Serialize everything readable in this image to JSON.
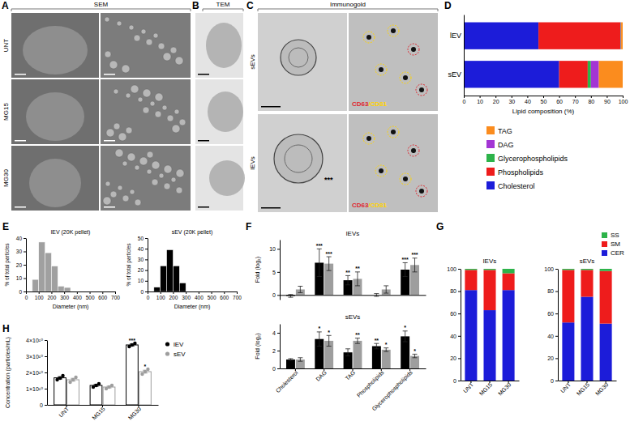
{
  "image_panels": {
    "A": {
      "label": "A",
      "header": "SEM",
      "rows": [
        "UNT",
        "MG15",
        "MG30"
      ]
    },
    "B": {
      "label": "B",
      "header": "TEM"
    },
    "C": {
      "label": "C",
      "header": "Immunogold",
      "rows": [
        "sEVs",
        "lEVs"
      ],
      "stain_labels": [
        {
          "text": "CD63",
          "color": "#e0262e"
        },
        {
          "text": "/CD81",
          "color": "#ffd400"
        }
      ],
      "annotation": "***"
    }
  },
  "chart_data": [
    {
      "type": "bar",
      "panel": "D",
      "orientation": "horizontal",
      "stacked": true,
      "legend": "bottom",
      "categories": [
        "lEV",
        "sEV"
      ],
      "series": [
        {
          "name": "Cholesterol",
          "color": "#1c1cd9",
          "values": [
            47,
            60
          ]
        },
        {
          "name": "Phospholipids",
          "color": "#ee1c1c",
          "values": [
            51.5,
            18
          ]
        },
        {
          "name": "Glycerophospholipids",
          "color": "#2db34a",
          "values": [
            0.3,
            2
          ]
        },
        {
          "name": "DAG",
          "color": "#a335d4",
          "values": [
            0.2,
            5
          ]
        },
        {
          "name": "TAG",
          "color": "#fb8c1e",
          "values": [
            1,
            15
          ]
        }
      ],
      "xlim": [
        0,
        100
      ],
      "xticks": [
        0,
        10,
        20,
        30,
        40,
        50,
        60,
        70,
        80,
        90,
        100
      ],
      "x_label": "Lipid composition (%)"
    },
    {
      "type": "histogram",
      "panel": "E",
      "title": "lEV (20K pellet)",
      "color": "#a0a0a0",
      "bins": [
        50,
        100,
        150,
        200,
        250,
        300,
        350
      ],
      "values": [
        9,
        37,
        29,
        19,
        4,
        3
      ],
      "xlim": [
        0,
        700
      ],
      "xticks": [
        0,
        100,
        200,
        300,
        400,
        500,
        600,
        700
      ],
      "ylim": [
        0,
        40
      ],
      "yticks": [
        0,
        10,
        20,
        30,
        40
      ],
      "x_label": "Diameter (nm)",
      "y_label": "% of total particles"
    },
    {
      "type": "histogram",
      "title": "sEV (20K pellet)",
      "color": "#000000",
      "bins": [
        50,
        100,
        150,
        200,
        250,
        300
      ],
      "values": [
        4,
        24,
        39,
        24,
        8
      ],
      "xlim": [
        0,
        700
      ],
      "xticks": [
        0,
        100,
        200,
        300,
        400,
        500,
        600,
        700
      ],
      "ylim": [
        0,
        50
      ],
      "yticks": [
        0,
        10,
        20,
        30,
        40,
        50
      ],
      "x_label": "Diameter (nm)",
      "y_label": "% of total particles"
    },
    {
      "type": "bar",
      "panel": "F",
      "title": "lEVs",
      "tick_labels": "y",
      "categories": [
        "Cholesterol",
        "DAG",
        "TAG",
        "Phospholipids",
        "Glycerophospholipids"
      ],
      "series": [
        {
          "color": "#000000",
          "values": [
            -0.2,
            7,
            3.2,
            0,
            5.5
          ],
          "errors": [
            0.3,
            3,
            1,
            0.3,
            1.5
          ],
          "significance": [
            null,
            "***",
            "**",
            null,
            "***"
          ]
        },
        {
          "color": "#9e9e9e",
          "values": [
            1.2,
            6.8,
            3.5,
            1.2,
            6.5
          ],
          "errors": [
            0.7,
            1.5,
            1.5,
            0.8,
            1.5
          ],
          "significance": [
            null,
            "***",
            "**",
            null,
            "***"
          ]
        }
      ],
      "ylim": [
        -1,
        12
      ],
      "yticks": [
        0,
        5,
        10
      ],
      "y_label": "Fold (log₂)"
    },
    {
      "type": "bar",
      "title": "sEVs",
      "categories": [
        "Cholesterol",
        "DAG",
        "TAG",
        "Phospholipids",
        "Glycerophospholipids"
      ],
      "series": [
        {
          "color": "#000000",
          "values": [
            1,
            3.3,
            1.8,
            2.5,
            3.6
          ],
          "errors": [
            0.1,
            0.8,
            0.4,
            0.3,
            0.6
          ],
          "significance": [
            null,
            "*",
            null,
            "**",
            "*"
          ]
        },
        {
          "color": "#9e9e9e",
          "values": [
            1,
            3.1,
            3.1,
            2.1,
            1.4
          ],
          "errors": [
            0.2,
            0.6,
            0.3,
            0.2,
            0.2
          ],
          "significance": [
            null,
            "*",
            "**",
            "*",
            "*"
          ]
        }
      ],
      "ylim": [
        0,
        5
      ],
      "yticks": [
        0,
        2,
        4
      ],
      "y_label": "Fold (log₂)"
    },
    {
      "type": "bar",
      "panel": "G",
      "title": "lEVs",
      "stacked": true,
      "categories": [
        "UNT",
        "MG15",
        "MG30"
      ],
      "series": [
        {
          "color": "#1c1cd9",
          "values": [
            81,
            63,
            81
          ]
        },
        {
          "color": "#ee1c1c",
          "values": [
            18,
            36,
            15
          ]
        },
        {
          "color": "#2db34a",
          "values": [
            1,
            1,
            4
          ]
        }
      ],
      "ylim": [
        0,
        100
      ],
      "yticks": [
        0,
        20,
        40,
        60,
        80,
        100
      ]
    },
    {
      "type": "bar",
      "title": "sEVs",
      "stacked": true,
      "legend": "top right",
      "categories": [
        "UNT",
        "MG15",
        "MG30"
      ],
      "series": [
        {
          "name": "CER",
          "color": "#1c1cd9",
          "values": [
            52,
            75,
            51
          ]
        },
        {
          "name": "SM",
          "color": "#ee1c1c",
          "values": [
            47,
            24,
            47
          ]
        },
        {
          "name": "SS",
          "color": "#2db34a",
          "values": [
            1,
            1,
            2
          ]
        }
      ],
      "ylim": [
        0,
        100
      ],
      "yticks": [
        0,
        20,
        40,
        60,
        80,
        100
      ]
    },
    {
      "type": "bar",
      "panel": "H",
      "legend": "right",
      "categories": [
        "UNT",
        "MG15",
        "MG30"
      ],
      "series": [
        {
          "name": "lEV",
          "color": "#000000",
          "marker": "circle",
          "values": [
            16700000000,
            12000000000,
            37000000000
          ],
          "errors": [
            700000000,
            600000000,
            600000000
          ],
          "points": [
            [
              15500000000,
              16500000000,
              18000000000
            ],
            [
              11000000000,
              12000000000,
              13000000000
            ],
            [
              36000000000,
              37000000000,
              38000000000
            ]
          ],
          "significance": [
            null,
            null,
            "***"
          ]
        },
        {
          "name": "sEV",
          "color": "#9e9e9e",
          "marker": "circle",
          "values": [
            15500000000,
            11000000000,
            20500000000
          ],
          "errors": [
            900000000,
            600000000,
            900000000
          ],
          "points": [
            [
              14000000000,
              15500000000,
              17000000000
            ],
            [
              10000000000,
              11000000000,
              12000000000
            ],
            [
              19000000000,
              20500000000,
              22000000000
            ]
          ],
          "significance": [
            null,
            null,
            "*"
          ]
        }
      ],
      "ylim": [
        0,
        40000000000
      ],
      "yticks": [
        0,
        {
          "value": 10000000000,
          "label": "1×10¹⁰"
        },
        {
          "value": 20000000000,
          "label": "2×10¹⁰"
        },
        {
          "value": 30000000000,
          "label": "3×10¹⁰"
        },
        {
          "value": 40000000000,
          "label": "4×10¹⁰"
        }
      ],
      "y_label": "Concentration (particles/mL)"
    }
  ]
}
